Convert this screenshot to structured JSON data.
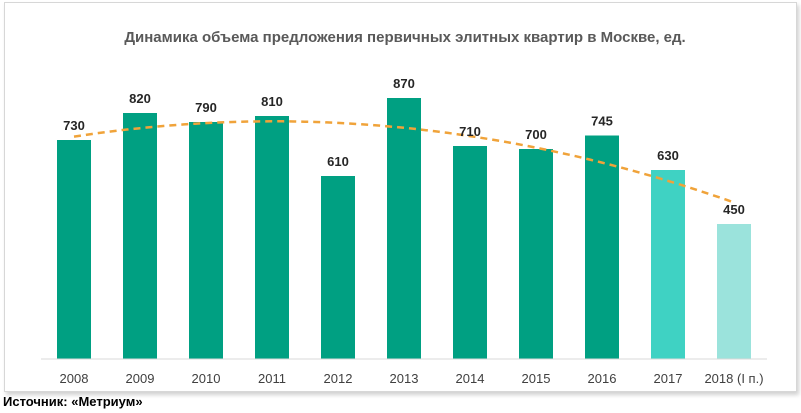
{
  "source_note": "Источник: «Метриум»",
  "colors": {
    "bar_main": "#00a082",
    "bar_2017": "#3fd2c3",
    "bar_2018": "#9be3dc",
    "trend": "#f0a33a",
    "axis": "#d9d9d9"
  },
  "chart_data": {
    "type": "bar",
    "title": "Динамика объема предложения первичных элитных квартир в Москве, ед.",
    "categories": [
      "2008",
      "2009",
      "2010",
      "2011",
      "2012",
      "2013",
      "2014",
      "2015",
      "2016",
      "2017",
      "2018 (I п.)"
    ],
    "values": [
      730,
      820,
      790,
      810,
      610,
      870,
      710,
      700,
      745,
      630,
      450
    ],
    "value_labels": [
      "730",
      "820",
      "790",
      "810",
      "610",
      "870",
      "710",
      "700",
      "745",
      "630",
      "450"
    ],
    "ylim": [
      0,
      1000
    ],
    "grid": false,
    "legend": "none",
    "trendline": {
      "type": "polynomial",
      "style": "dashed"
    }
  }
}
